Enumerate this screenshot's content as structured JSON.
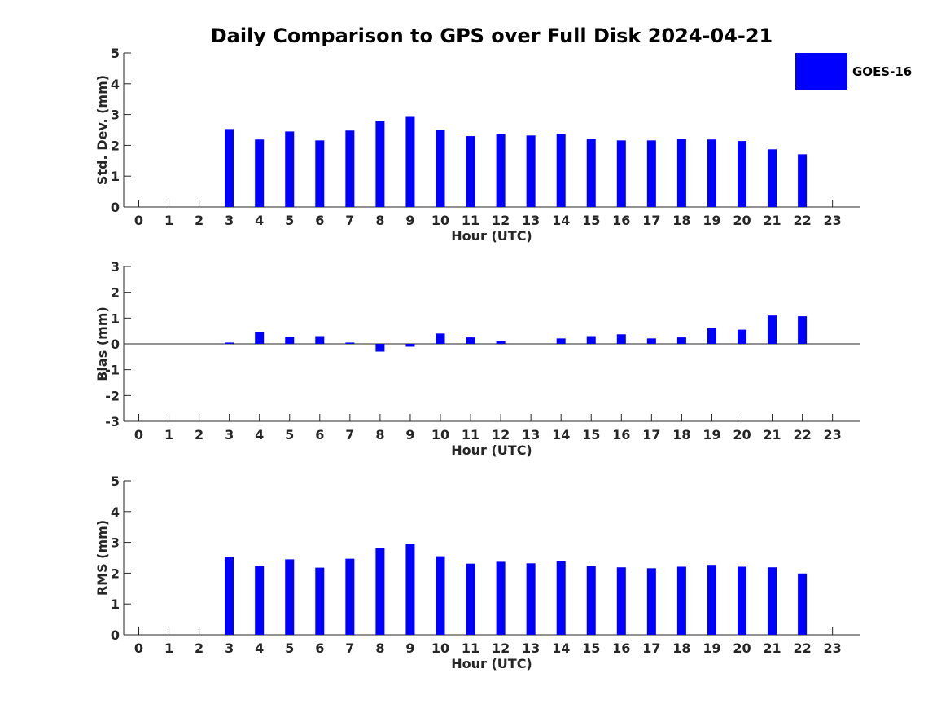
{
  "title": "Daily Comparison to GPS over Full Disk 2024-04-21",
  "legend": {
    "label": "GOES-16",
    "color": "#0000ff"
  },
  "chart_data": [
    {
      "type": "bar",
      "name": "std-dev",
      "xlabel": "Hour (UTC)",
      "ylabel": "Std. Dev. (mm)",
      "ylim": [
        0,
        5
      ],
      "yticks": [
        0,
        1,
        2,
        3,
        4,
        5
      ],
      "categories": [
        "0",
        "1",
        "2",
        "3",
        "4",
        "5",
        "6",
        "7",
        "8",
        "9",
        "10",
        "11",
        "12",
        "13",
        "14",
        "15",
        "16",
        "17",
        "18",
        "19",
        "20",
        "21",
        "22",
        "23"
      ],
      "series": [
        {
          "name": "GOES-16",
          "color": "#0000ff",
          "values": [
            null,
            null,
            null,
            2.53,
            2.19,
            2.45,
            2.16,
            2.48,
            2.8,
            2.95,
            2.5,
            2.3,
            2.37,
            2.32,
            2.37,
            2.21,
            2.16,
            2.16,
            2.21,
            2.19,
            2.14,
            1.87,
            1.71,
            null
          ]
        }
      ]
    },
    {
      "type": "bar",
      "name": "bias",
      "xlabel": "Hour (UTC)",
      "ylabel": "Bias (mm)",
      "ylim": [
        -3,
        3
      ],
      "yticks": [
        -3,
        -2,
        -1,
        0,
        1,
        2,
        3
      ],
      "categories": [
        "0",
        "1",
        "2",
        "3",
        "4",
        "5",
        "6",
        "7",
        "8",
        "9",
        "10",
        "11",
        "12",
        "13",
        "14",
        "15",
        "16",
        "17",
        "18",
        "19",
        "20",
        "21",
        "22",
        "23"
      ],
      "series": [
        {
          "name": "GOES-16",
          "color": "#0000ff",
          "values": [
            null,
            null,
            null,
            0.05,
            0.45,
            0.27,
            0.3,
            0.05,
            -0.3,
            -0.11,
            0.4,
            0.25,
            0.12,
            null,
            0.21,
            0.3,
            0.37,
            0.21,
            0.25,
            0.6,
            0.55,
            1.1,
            1.07,
            null
          ]
        }
      ]
    },
    {
      "type": "bar",
      "name": "rms",
      "xlabel": "Hour (UTC)",
      "ylabel": "RMS (mm)",
      "ylim": [
        0,
        5
      ],
      "yticks": [
        0,
        1,
        2,
        3,
        4,
        5
      ],
      "categories": [
        "0",
        "1",
        "2",
        "3",
        "4",
        "5",
        "6",
        "7",
        "8",
        "9",
        "10",
        "11",
        "12",
        "13",
        "14",
        "15",
        "16",
        "17",
        "18",
        "19",
        "20",
        "21",
        "22",
        "23"
      ],
      "series": [
        {
          "name": "GOES-16",
          "color": "#0000ff",
          "values": [
            null,
            null,
            null,
            2.53,
            2.23,
            2.45,
            2.18,
            2.47,
            2.82,
            2.95,
            2.55,
            2.31,
            2.37,
            2.32,
            2.39,
            2.23,
            2.19,
            2.16,
            2.21,
            2.27,
            2.21,
            2.19,
            1.99,
            null
          ]
        }
      ]
    }
  ]
}
